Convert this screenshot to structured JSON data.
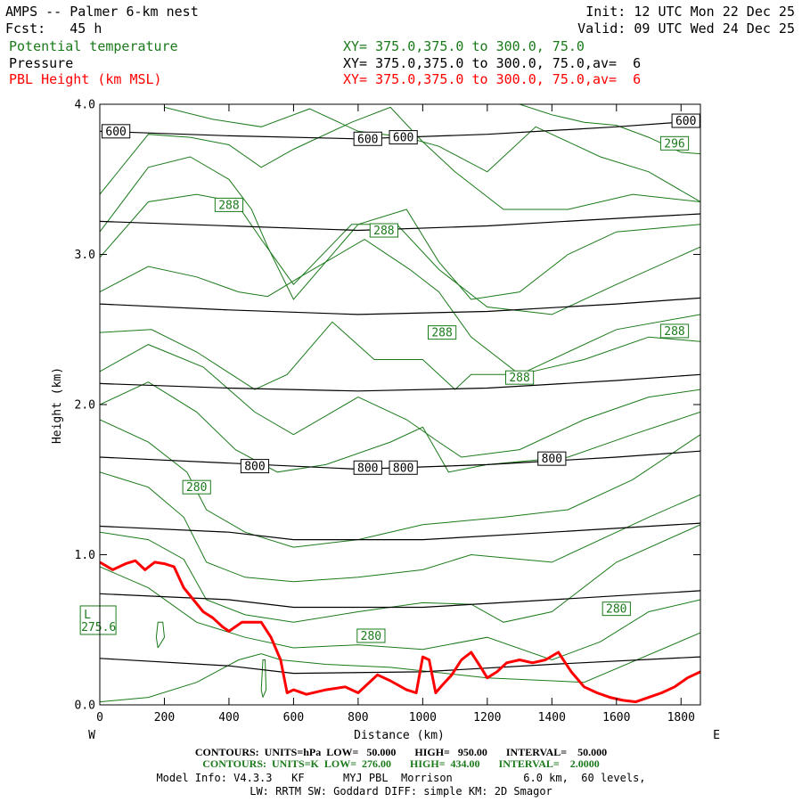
{
  "header": {
    "title": "AMPS -- Palmer 6-km nest",
    "fcst": "Fcst:   45 h",
    "init": "Init: 12 UTC Mon 22 Dec 25",
    "valid": "Valid: 09 UTC Wed 24 Dec 25",
    "var1": "Potential temperature",
    "var2": "Pressure",
    "var3": "PBL Height (km MSL)",
    "xy1": "XY= 375.0,375.0 to 300.0, 75.0",
    "xy2": "XY= 375.0,375.0 to 300.0, 75.0,av=  6",
    "xy3": "XY= 375.0,375.0 to 300.0, 75.0,av=  6"
  },
  "colors": {
    "theta": "#1a7a1a",
    "pressure": "#000000",
    "pbl": "#ff0000"
  },
  "footer": {
    "line1": "CONTOURS:  UNITS=hPa  LOW=   50.000       HIGH=   950.00       INTERVAL=    50.000",
    "line2": "CONTOURS:  UNITS=K  LOW=  276.00       HIGH=  434.00       INTERVAL=    2.0000",
    "line3": "Model Info: V4.3.3   KF      MYJ PBL  Morrison           6.0 km,  60 levels,",
    "line4": "LW: RRTM SW: Goddard DIFF: simple KM: 2D Smagor"
  },
  "chart_data": {
    "type": "line",
    "xlabel": "Distance (km)",
    "ylabel": "Height (km)",
    "xlim": [
      0,
      1860
    ],
    "ylim": [
      0,
      4
    ],
    "x_ticks": [
      "0",
      "200",
      "400",
      "600",
      "800",
      "1000",
      "1200",
      "1400",
      "1600",
      "1800"
    ],
    "y_ticks": [
      "0.0",
      "1.0",
      "2.0",
      "3.0",
      "4.0"
    ],
    "x_left_label": "W",
    "x_right_label": "E",
    "pressure_contours": [
      {
        "level": "600",
        "x": [
          0,
          400,
          800,
          1200,
          1600,
          1860
        ],
        "y": [
          3.82,
          3.79,
          3.77,
          3.8,
          3.85,
          3.89
        ]
      },
      {
        "level": "650",
        "x": [
          0,
          400,
          800,
          1200,
          1600,
          1860
        ],
        "y": [
          3.22,
          3.19,
          3.16,
          3.19,
          3.24,
          3.27
        ]
      },
      {
        "level": "700",
        "x": [
          0,
          400,
          800,
          1200,
          1600,
          1860
        ],
        "y": [
          2.67,
          2.63,
          2.6,
          2.62,
          2.67,
          2.71
        ]
      },
      {
        "level": "750",
        "x": [
          0,
          400,
          800,
          1200,
          1600,
          1860
        ],
        "y": [
          2.14,
          2.11,
          2.09,
          2.11,
          2.16,
          2.2
        ]
      },
      {
        "level": "800",
        "x": [
          0,
          400,
          800,
          1200,
          1600,
          1860
        ],
        "y": [
          1.65,
          1.61,
          1.57,
          1.6,
          1.65,
          1.69
        ]
      },
      {
        "level": "850",
        "x": [
          0,
          400,
          600,
          1000,
          1400,
          1860
        ],
        "y": [
          1.19,
          1.15,
          1.1,
          1.1,
          1.15,
          1.21
        ]
      },
      {
        "level": "900",
        "x": [
          0,
          400,
          600,
          1000,
          1400,
          1860
        ],
        "y": [
          0.74,
          0.7,
          0.65,
          0.65,
          0.7,
          0.76
        ]
      },
      {
        "level": "950",
        "x": [
          0,
          400,
          600,
          1000,
          1400,
          1860
        ],
        "y": [
          0.31,
          0.26,
          0.21,
          0.22,
          0.27,
          0.32
        ]
      }
    ],
    "pressure_labels": [
      {
        "text": "600",
        "x": 50,
        "y": 3.82
      },
      {
        "text": "600",
        "x": 830,
        "y": 3.77
      },
      {
        "text": "600",
        "x": 940,
        "y": 3.78
      },
      {
        "text": "600",
        "x": 1815,
        "y": 3.89
      },
      {
        "text": "800",
        "x": 480,
        "y": 1.59
      },
      {
        "text": "800",
        "x": 830,
        "y": 1.58
      },
      {
        "text": "800",
        "x": 940,
        "y": 1.58
      },
      {
        "text": "800",
        "x": 1400,
        "y": 1.64
      }
    ],
    "theta_contours": [
      {
        "x": [
          0,
          150,
          300,
          430,
          500,
          560,
          700,
          900,
          1200,
          1500,
          1860
        ],
        "y": [
          0.02,
          0.05,
          0.15,
          0.3,
          0.34,
          0.3,
          0.27,
          0.25,
          0.18,
          0.15,
          0.48
        ]
      },
      {
        "x": [
          0,
          150,
          300,
          450,
          600,
          800,
          1000,
          1200,
          1400,
          1550,
          1700,
          1860
        ],
        "y": [
          0.92,
          0.78,
          0.55,
          0.45,
          0.38,
          0.4,
          0.37,
          0.45,
          0.3,
          0.42,
          0.62,
          0.7
        ]
      },
      {
        "x": [
          0,
          150,
          260,
          330,
          450,
          600,
          800,
          1000,
          1150,
          1250,
          1400,
          1600,
          1860
        ],
        "y": [
          1.15,
          1.1,
          0.97,
          0.7,
          0.6,
          0.55,
          0.62,
          0.68,
          0.67,
          0.55,
          0.62,
          0.95,
          1.2
        ]
      },
      {
        "x": [
          0,
          150,
          260,
          330,
          450,
          600,
          800,
          1000,
          1150,
          1400,
          1700,
          1860
        ],
        "y": [
          1.55,
          1.45,
          1.25,
          0.95,
          0.85,
          0.82,
          0.85,
          0.9,
          1.0,
          0.95,
          1.25,
          1.4
        ]
      },
      {
        "x": [
          0,
          150,
          270,
          330,
          450,
          600,
          800,
          1000,
          1250,
          1450,
          1650,
          1860
        ],
        "y": [
          1.9,
          1.75,
          1.55,
          1.3,
          1.15,
          1.05,
          1.1,
          1.2,
          1.25,
          1.3,
          1.5,
          1.8
        ]
      },
      {
        "x": [
          0,
          150,
          300,
          420,
          550,
          700,
          900,
          1000,
          1080,
          1200,
          1450,
          1650,
          1860
        ],
        "y": [
          2.0,
          2.15,
          1.95,
          1.7,
          1.55,
          1.6,
          1.75,
          1.85,
          1.55,
          1.6,
          1.65,
          1.8,
          1.95
        ]
      },
      {
        "x": [
          0,
          150,
          320,
          480,
          600,
          800,
          950,
          1050,
          1120,
          1300,
          1500,
          1700,
          1860
        ],
        "y": [
          2.22,
          2.4,
          2.25,
          1.95,
          1.8,
          2.05,
          1.9,
          1.75,
          1.65,
          1.7,
          1.9,
          2.05,
          2.1
        ]
      },
      {
        "x": [
          0,
          160,
          300,
          480,
          580,
          720,
          850,
          1000,
          1100,
          1150,
          1300,
          1500,
          1700,
          1860
        ],
        "y": [
          2.48,
          2.5,
          2.35,
          2.1,
          2.2,
          2.55,
          2.3,
          2.3,
          2.1,
          2.2,
          2.2,
          2.3,
          2.45,
          2.42
        ]
      },
      {
        "x": [
          0,
          150,
          300,
          430,
          520,
          620,
          820,
          960,
          1050,
          1150,
          1300,
          1450,
          1600,
          1860
        ],
        "y": [
          2.75,
          2.92,
          2.85,
          2.75,
          2.72,
          2.85,
          3.1,
          2.9,
          2.75,
          2.45,
          2.2,
          2.35,
          2.5,
          2.6
        ]
      },
      {
        "x": [
          0,
          150,
          300,
          420,
          500,
          600,
          780,
          920,
          1050,
          1200,
          1400,
          1600,
          1860
        ],
        "y": [
          2.98,
          3.35,
          3.4,
          3.35,
          3.1,
          2.8,
          3.2,
          3.2,
          2.9,
          2.65,
          2.6,
          2.8,
          3.05
        ]
      },
      {
        "x": [
          0,
          150,
          280,
          400,
          470,
          520,
          600,
          800,
          950,
          1050,
          1150,
          1300,
          1450,
          1600,
          1860
        ],
        "y": [
          3.15,
          3.58,
          3.65,
          3.5,
          3.3,
          3.05,
          2.7,
          3.2,
          3.3,
          2.95,
          2.7,
          2.75,
          3.0,
          3.15,
          3.2
        ]
      },
      {
        "x": [
          0,
          150,
          280,
          400,
          500,
          600,
          780,
          900,
          1000,
          1100,
          1250,
          1450,
          1650,
          1860
        ],
        "y": [
          3.4,
          3.8,
          3.78,
          3.73,
          3.58,
          3.7,
          3.88,
          3.98,
          3.75,
          3.55,
          3.3,
          3.3,
          3.4,
          3.35
        ]
      },
      {
        "x": [
          200,
          350,
          500,
          650,
          800,
          950,
          1050,
          1200,
          1350,
          1450,
          1550,
          1700,
          1860
        ],
        "y": [
          3.98,
          3.9,
          3.85,
          3.97,
          3.82,
          3.78,
          3.72,
          3.55,
          3.85,
          3.75,
          3.65,
          3.55,
          3.35
        ]
      },
      {
        "x": [
          1300,
          1400,
          1500,
          1600,
          1700,
          1800,
          1860
        ],
        "y": [
          4.0,
          3.93,
          3.88,
          3.86,
          3.78,
          3.68,
          3.67
        ]
      },
      {
        "x": [
          180,
          200,
          195,
          180,
          175,
          180
        ],
        "y": [
          0.38,
          0.45,
          0.55,
          0.55,
          0.45,
          0.38
        ]
      },
      {
        "x": [
          505,
          515,
          512,
          505,
          500,
          505
        ],
        "y": [
          0.05,
          0.1,
          0.3,
          0.3,
          0.1,
          0.05
        ]
      }
    ],
    "theta_labels": [
      {
        "text": "288",
        "x": 400,
        "y": 3.33
      },
      {
        "text": "288",
        "x": 880,
        "y": 3.16
      },
      {
        "text": "288",
        "x": 1060,
        "y": 2.48
      },
      {
        "text": "288",
        "x": 1300,
        "y": 2.18
      },
      {
        "text": "288",
        "x": 1780,
        "y": 2.49
      },
      {
        "text": "296",
        "x": 1780,
        "y": 3.74
      },
      {
        "text": "280",
        "x": 300,
        "y": 1.45
      },
      {
        "text": "280",
        "x": 840,
        "y": 0.46
      },
      {
        "text": "280",
        "x": 1600,
        "y": 0.64
      }
    ],
    "min_label": {
      "letter": "L",
      "value": "275.6",
      "x": 50,
      "y": 0.57
    },
    "pbl_height": {
      "x": [
        0,
        40,
        80,
        110,
        140,
        170,
        200,
        230,
        260,
        290,
        320,
        350,
        380,
        400,
        440,
        470,
        500,
        530,
        560,
        580,
        600,
        640,
        700,
        760,
        800,
        860,
        900,
        950,
        980,
        1000,
        1020,
        1040,
        1060,
        1090,
        1120,
        1150,
        1180,
        1200,
        1230,
        1260,
        1300,
        1340,
        1380,
        1420,
        1460,
        1500,
        1540,
        1580,
        1620,
        1660,
        1700,
        1740,
        1780,
        1820,
        1860
      ],
      "y": [
        0.95,
        0.9,
        0.94,
        0.96,
        0.9,
        0.95,
        0.94,
        0.92,
        0.78,
        0.7,
        0.62,
        0.58,
        0.52,
        0.49,
        0.55,
        0.55,
        0.55,
        0.45,
        0.3,
        0.08,
        0.1,
        0.07,
        0.1,
        0.12,
        0.08,
        0.2,
        0.16,
        0.1,
        0.08,
        0.32,
        0.3,
        0.08,
        0.13,
        0.2,
        0.3,
        0.35,
        0.25,
        0.18,
        0.22,
        0.28,
        0.3,
        0.28,
        0.3,
        0.35,
        0.22,
        0.12,
        0.08,
        0.05,
        0.03,
        0.02,
        0.05,
        0.08,
        0.12,
        0.18,
        0.22
      ]
    }
  }
}
